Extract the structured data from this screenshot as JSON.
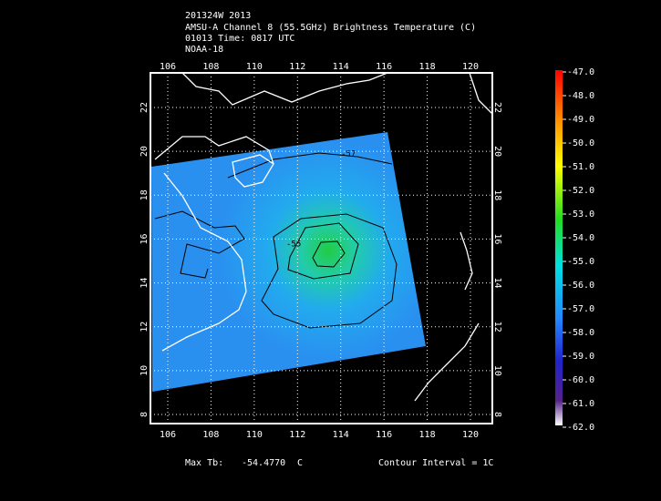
{
  "header": {
    "lines": [
      "201324W 2013",
      "AMSU-A Channel 8 (55.5GHz) Brightness Temperature (C)",
      "01013 Time: 0817 UTC",
      "NOAA-18"
    ]
  },
  "map": {
    "lon_ticks": [
      106,
      108,
      110,
      112,
      114,
      116,
      118,
      120
    ],
    "lat_ticks": [
      8,
      10,
      12,
      14,
      16,
      18,
      20,
      22
    ],
    "contour_labels": [
      "-55",
      "-57"
    ]
  },
  "colorbar": {
    "ticks": [
      {
        "value": -47,
        "label": "-47.0"
      },
      {
        "value": -48,
        "label": "-48.0"
      },
      {
        "value": -49,
        "label": "-49.0"
      },
      {
        "value": -50,
        "label": "-50.0"
      },
      {
        "value": -51,
        "label": "-51.0"
      },
      {
        "value": -52,
        "label": "-52.0"
      },
      {
        "value": -53,
        "label": "-53.0"
      },
      {
        "value": -54,
        "label": "-54.0"
      },
      {
        "value": -55,
        "label": "-55.0"
      },
      {
        "value": -56,
        "label": "-56.0"
      },
      {
        "value": -57,
        "label": "-57.0"
      },
      {
        "value": -58,
        "label": "-58.0"
      },
      {
        "value": -59,
        "label": "-59.0"
      },
      {
        "value": -60,
        "label": "-60.0"
      },
      {
        "value": -61,
        "label": "-61.0"
      },
      {
        "value": -62,
        "label": "-62.0"
      }
    ]
  },
  "footer": {
    "max_tb_label": "Max Tb:",
    "max_tb_value": "-54.4770",
    "max_tb_unit": "C",
    "contour_interval": "Contour Interval = 1C"
  }
}
